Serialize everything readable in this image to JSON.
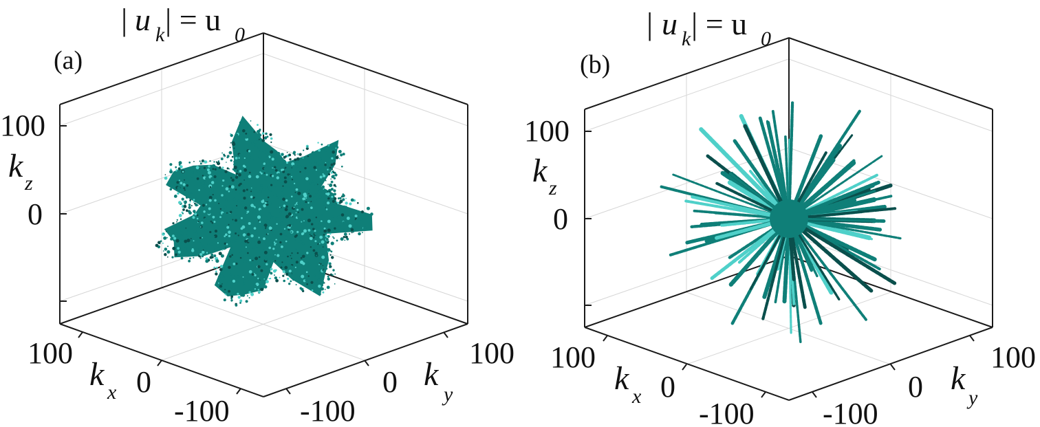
{
  "colors": {
    "surface": "#0f7f78",
    "surface_light": "#4fd0c9",
    "surface_dark": "#0a4f4c",
    "box": "#1a1a1a",
    "grid": "#d6d6d6"
  },
  "chart_data": [
    {
      "type": "isosurface3d",
      "panel_label": "(a)",
      "title": {
        "bar": "|",
        "u": "u",
        "k": "k",
        "eq": "| = u",
        "zero": "0"
      },
      "xlabel": {
        "main": "k",
        "sub": "x"
      },
      "ylabel": {
        "main": "k",
        "sub": "y"
      },
      "zlabel": {
        "main": "k",
        "sub": "z"
      },
      "xticks": [
        "100",
        "0",
        "-100"
      ],
      "yticks": [
        "100",
        "0",
        "-100"
      ],
      "zticks": [
        "100",
        "0"
      ],
      "xlim": [
        -150,
        150
      ],
      "ylim": [
        -150,
        150
      ],
      "zlim": [
        -150,
        150
      ],
      "grid": true,
      "shape": "compact blob",
      "approx_extent": 60,
      "surface_color": "#0f7f78"
    },
    {
      "type": "isosurface3d",
      "panel_label": "(b)",
      "title": {
        "bar": "|",
        "u": "u",
        "k": "k",
        "eq": "| = u",
        "zero": "0"
      },
      "xlabel": {
        "main": "k",
        "sub": "x"
      },
      "ylabel": {
        "main": "k",
        "sub": "y"
      },
      "zlabel": {
        "main": "k",
        "sub": "z"
      },
      "xticks": [
        "100",
        "0",
        "-100"
      ],
      "yticks": [
        "100",
        "0",
        "-100"
      ],
      "zticks": [
        "100",
        "0"
      ],
      "xlim": [
        -150,
        150
      ],
      "ylim": [
        -150,
        150
      ],
      "zlim": [
        -150,
        150
      ],
      "grid": true,
      "shape": "radial spikes",
      "approx_extent": 130,
      "surface_color": "#0f7f78"
    }
  ]
}
